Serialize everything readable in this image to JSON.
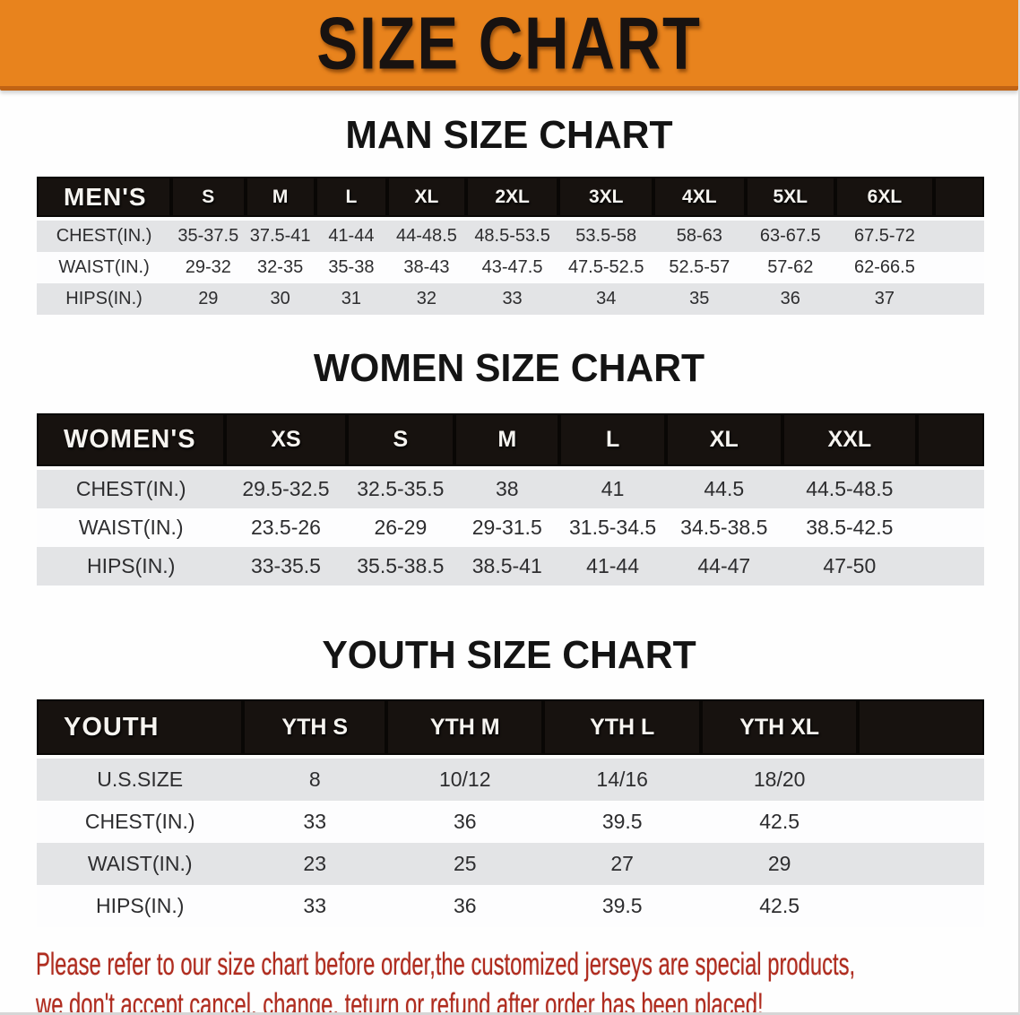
{
  "banner": {
    "title": "SIZE CHART",
    "bg_color": "#e8831d",
    "edge_color": "#c06314",
    "text_color": "#181210"
  },
  "sections": [
    {
      "title": "MAN SIZE CHART"
    },
    {
      "title": "WOMEN SIZE CHART"
    },
    {
      "title": "YOUTH SIZE CHART"
    }
  ],
  "tables": [
    {
      "name": "men-size-table",
      "corner_label": "MEN'S",
      "columns": [
        "S",
        "M",
        "L",
        "XL",
        "2XL",
        "3XL",
        "4XL",
        "5XL",
        "6XL"
      ],
      "col_widths_pct": [
        14.2,
        7.8,
        7.4,
        7.6,
        8.3,
        9.8,
        10.0,
        9.7,
        9.5,
        10.4,
        5.3
      ],
      "rows": [
        {
          "label": "CHEST(IN.)",
          "values": [
            "35-37.5",
            "37.5-41",
            "41-44",
            "44-48.5",
            "48.5-53.5",
            "53.5-58",
            "58-63",
            "63-67.5",
            "67.5-72"
          ]
        },
        {
          "label": "WAIST(IN.)",
          "values": [
            "29-32",
            "32-35",
            "35-38",
            "38-43",
            "43-47.5",
            "47.5-52.5",
            "52.5-57",
            "57-62",
            "62-66.5"
          ]
        },
        {
          "label": "HIPS(IN.)",
          "values": [
            "29",
            "30",
            "31",
            "32",
            "33",
            "34",
            "35",
            "36",
            "37"
          ]
        }
      ]
    },
    {
      "name": "women-size-table",
      "corner_label": "WOMEN'S",
      "columns": [
        "XS",
        "S",
        "M",
        "L",
        "XL",
        "XXL"
      ],
      "col_widths_pct": [
        19.9,
        12.8,
        11.4,
        11.1,
        11.2,
        12.3,
        14.2,
        7.1
      ],
      "rows": [
        {
          "label": "CHEST(IN.)",
          "values": [
            "29.5-32.5",
            "32.5-35.5",
            "38",
            "41",
            "44.5",
            "44.5-48.5"
          ]
        },
        {
          "label": "WAIST(IN.)",
          "values": [
            "23.5-26",
            "26-29",
            "29-31.5",
            "31.5-34.5",
            "34.5-38.5",
            "38.5-42.5"
          ]
        },
        {
          "label": "HIPS(IN.)",
          "values": [
            "33-35.5",
            "35.5-38.5",
            "38.5-41",
            "41-44",
            "44-47",
            "47-50"
          ]
        }
      ]
    },
    {
      "name": "youth-size-table",
      "corner_label": "YOUTH",
      "columns": [
        "YTH S",
        "YTH M",
        "YTH L",
        "YTH XL"
      ],
      "col_widths_pct": [
        21.8,
        15.1,
        16.6,
        16.6,
        16.6,
        13.3
      ],
      "rows": [
        {
          "label": "U.S.SIZE",
          "values": [
            "8",
            "10/12",
            "14/16",
            "18/20"
          ]
        },
        {
          "label": "CHEST(IN.)",
          "values": [
            "33",
            "36",
            "39.5",
            "42.5"
          ]
        },
        {
          "label": "WAIST(IN.)",
          "values": [
            "23",
            "25",
            "27",
            "29"
          ]
        },
        {
          "label": "HIPS(IN.)",
          "values": [
            "33",
            "36",
            "39.5",
            "42.5"
          ]
        }
      ]
    }
  ],
  "footnote": {
    "line1": "Please refer to our size chart before order,the customized jerseys are special products,",
    "line2": "we don't accept cancel, change, teturn or refund after order has been placed!",
    "color": "#b02c1f"
  },
  "stripe_colors": {
    "odd_row": "#e3e4e6",
    "even_row": "#fdfdfe",
    "header_bar": "#17120f"
  }
}
